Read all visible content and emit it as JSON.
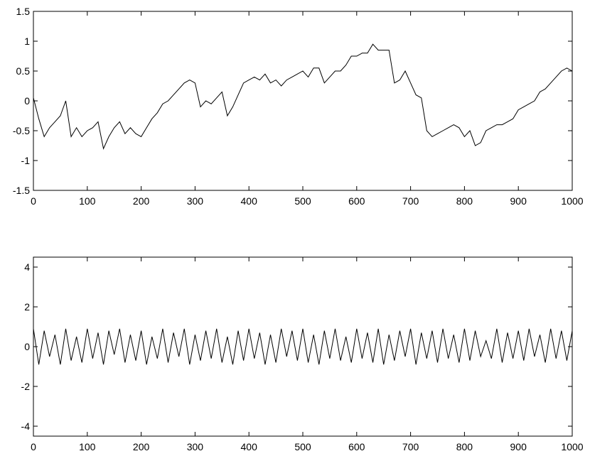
{
  "chart_data": [
    {
      "type": "line",
      "x": [
        0,
        10,
        20,
        30,
        40,
        50,
        60,
        70,
        80,
        90,
        100,
        110,
        120,
        130,
        140,
        150,
        160,
        170,
        180,
        190,
        200,
        210,
        220,
        230,
        240,
        250,
        260,
        270,
        280,
        290,
        300,
        310,
        320,
        330,
        340,
        350,
        360,
        370,
        380,
        390,
        400,
        410,
        420,
        430,
        440,
        450,
        460,
        470,
        480,
        490,
        500,
        510,
        520,
        530,
        540,
        550,
        560,
        570,
        580,
        590,
        600,
        610,
        620,
        630,
        640,
        650,
        660,
        670,
        680,
        690,
        700,
        710,
        720,
        730,
        740,
        750,
        760,
        770,
        780,
        790,
        800,
        810,
        820,
        830,
        840,
        850,
        860,
        870,
        880,
        890,
        900,
        910,
        920,
        930,
        940,
        950,
        960,
        970,
        980,
        990,
        1000
      ],
      "series": [
        {
          "color": "#000000",
          "values": [
            0.05,
            -0.3,
            -0.6,
            -0.45,
            -0.35,
            -0.25,
            0.0,
            -0.6,
            -0.45,
            -0.6,
            -0.5,
            -0.45,
            -0.35,
            -0.8,
            -0.6,
            -0.45,
            -0.35,
            -0.55,
            -0.45,
            -0.55,
            -0.6,
            -0.45,
            -0.3,
            -0.2,
            -0.05,
            0.0,
            0.1,
            0.2,
            0.3,
            0.35,
            0.3,
            -0.1,
            0.0,
            -0.05,
            0.05,
            0.15,
            -0.25,
            -0.1,
            0.1,
            0.3,
            0.35,
            0.4,
            0.35,
            0.45,
            0.3,
            0.35,
            0.25,
            0.35,
            0.4,
            0.45,
            0.5,
            0.4,
            0.55,
            0.55,
            0.3,
            0.4,
            0.5,
            0.5,
            0.6,
            0.75,
            0.75,
            0.8,
            0.8,
            0.95,
            0.85,
            0.85,
            0.85,
            0.3,
            0.35,
            0.5,
            0.3,
            0.1,
            0.05,
            -0.5,
            -0.6,
            -0.55,
            -0.5,
            -0.45,
            -0.4,
            -0.45,
            -0.6,
            -0.5,
            -0.75,
            -0.7,
            -0.5,
            -0.45,
            -0.4,
            -0.4,
            -0.35,
            -0.3,
            -0.15,
            -0.1,
            -0.05,
            0.0,
            0.15,
            0.2,
            0.3,
            0.4,
            0.5,
            0.55,
            0.5
          ]
        }
      ],
      "xlim": [
        0,
        1000
      ],
      "ylim": [
        -1.5,
        1.5
      ],
      "xticks": [
        0,
        100,
        200,
        300,
        400,
        500,
        600,
        700,
        800,
        900,
        1000
      ],
      "yticks": [
        -1.5,
        -1,
        -0.5,
        0,
        0.5,
        1,
        1.5
      ]
    },
    {
      "type": "line",
      "x": [
        0,
        10,
        20,
        30,
        40,
        50,
        60,
        70,
        80,
        90,
        100,
        110,
        120,
        130,
        140,
        150,
        160,
        170,
        180,
        190,
        200,
        210,
        220,
        230,
        240,
        250,
        260,
        270,
        280,
        290,
        300,
        310,
        320,
        330,
        340,
        350,
        360,
        370,
        380,
        390,
        400,
        410,
        420,
        430,
        440,
        450,
        460,
        470,
        480,
        490,
        500,
        510,
        520,
        530,
        540,
        550,
        560,
        570,
        580,
        590,
        600,
        610,
        620,
        630,
        640,
        650,
        660,
        670,
        680,
        690,
        700,
        710,
        720,
        730,
        740,
        750,
        760,
        770,
        780,
        790,
        800,
        810,
        820,
        830,
        840,
        850,
        860,
        870,
        880,
        890,
        900,
        910,
        920,
        930,
        940,
        950,
        960,
        970,
        980,
        990,
        1000
      ],
      "series": [
        {
          "color": "#000000",
          "values": [
            0.9,
            -0.9,
            0.8,
            -0.5,
            0.6,
            -0.9,
            0.9,
            -0.7,
            0.5,
            -0.8,
            0.9,
            -0.6,
            0.7,
            -0.9,
            0.8,
            -0.4,
            0.9,
            -0.8,
            0.6,
            -0.7,
            0.8,
            -0.9,
            0.5,
            -0.6,
            0.9,
            -0.8,
            0.7,
            -0.5,
            0.9,
            -0.9,
            0.6,
            -0.7,
            0.8,
            -0.6,
            0.9,
            -0.8,
            0.5,
            -0.9,
            0.8,
            -0.7,
            0.9,
            -0.6,
            0.7,
            -0.9,
            0.6,
            -0.8,
            0.9,
            -0.5,
            0.8,
            -0.7,
            0.9,
            -0.8,
            0.6,
            -0.9,
            0.8,
            -0.6,
            0.9,
            -0.7,
            0.5,
            -0.8,
            0.9,
            -0.6,
            0.7,
            -0.8,
            0.9,
            -0.9,
            0.6,
            -0.7,
            0.8,
            -0.5,
            0.9,
            -0.9,
            0.7,
            -0.6,
            0.8,
            -0.8,
            0.9,
            -0.6,
            0.6,
            -0.8,
            0.9,
            -0.7,
            0.8,
            -0.5,
            0.3,
            -0.6,
            0.9,
            -0.8,
            0.7,
            -0.6,
            0.8,
            -0.7,
            0.9,
            -0.5,
            0.6,
            -0.8,
            0.9,
            -0.6,
            0.8,
            -0.7,
            0.8
          ]
        }
      ],
      "xlim": [
        0,
        1000
      ],
      "ylim": [
        -4.5,
        4.5
      ],
      "xticks": [
        0,
        100,
        200,
        300,
        400,
        500,
        600,
        700,
        800,
        900,
        1000
      ],
      "yticks": [
        -4,
        -2,
        0,
        2,
        4
      ]
    }
  ]
}
